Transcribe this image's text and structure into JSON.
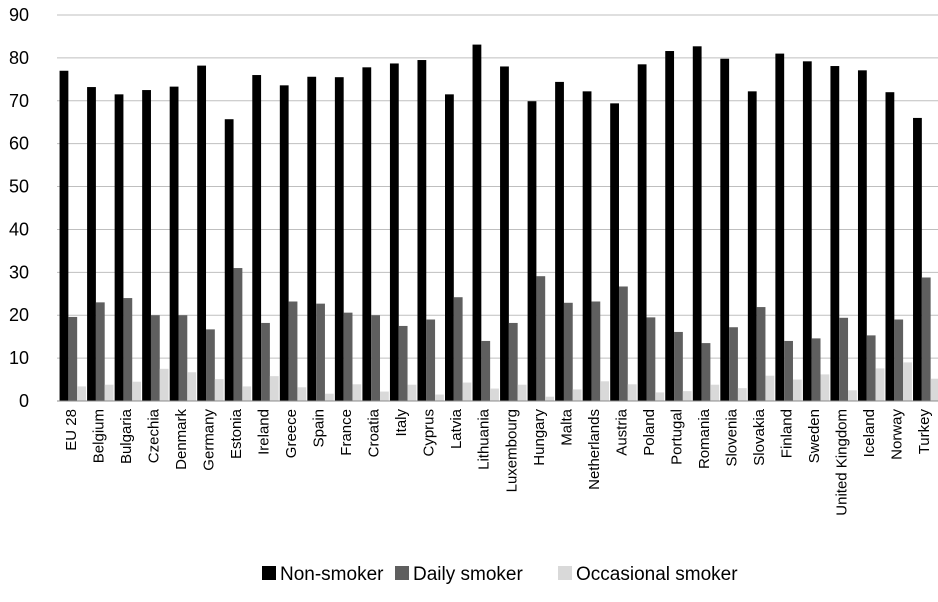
{
  "chart_data": {
    "type": "bar",
    "title": "",
    "xlabel": "",
    "ylabel": "",
    "ylim": [
      0,
      90
    ],
    "yticks": [
      "0",
      "10",
      "20",
      "30",
      "40",
      "50",
      "60",
      "70",
      "80",
      "90"
    ],
    "grid": "horizontal",
    "legend_position": "bottom",
    "categories": [
      "EU 28",
      "Belgium",
      "Bulgaria",
      "Czechia",
      "Denmark",
      "Germany",
      "Estonia",
      "Ireland",
      "Greece",
      "Spain",
      "France",
      "Croatia",
      "Italy",
      "Cyprus",
      "Latvia",
      "Lithuania",
      "Luxembourg",
      "Hungary",
      "Malta",
      "Netherlands",
      "Austria",
      "Poland",
      "Portugal",
      "Romania",
      "Slovenia",
      "Slovakia",
      "Finland",
      "Sweden",
      "United Kingdom",
      "Iceland",
      "Norway",
      "Turkey"
    ],
    "series": [
      {
        "name": "Non-smoker",
        "color": "#000000",
        "values": [
          77.0,
          73.2,
          71.5,
          72.5,
          73.3,
          78.2,
          65.7,
          76.0,
          73.6,
          75.6,
          75.5,
          77.8,
          78.7,
          79.5,
          71.5,
          83.1,
          78.0,
          69.9,
          74.4,
          72.2,
          69.4,
          78.5,
          81.6,
          82.7,
          79.8,
          72.2,
          81.0,
          79.2,
          78.1,
          77.1,
          72.0,
          66.0
        ]
      },
      {
        "name": "Daily smoker",
        "color": "#5f5f5f",
        "values": [
          19.6,
          23.0,
          24.0,
          20.0,
          20.0,
          16.7,
          31.0,
          18.2,
          23.2,
          22.7,
          20.6,
          20.0,
          17.5,
          19.0,
          24.2,
          14.0,
          18.2,
          29.1,
          22.9,
          23.2,
          26.7,
          19.5,
          16.1,
          13.5,
          17.2,
          21.9,
          14.0,
          14.6,
          19.4,
          15.3,
          19.0,
          28.8
        ]
      },
      {
        "name": "Occasional smoker",
        "color": "#d9d9d9",
        "values": [
          3.4,
          3.8,
          4.5,
          7.5,
          6.7,
          5.1,
          3.4,
          5.8,
          3.2,
          1.7,
          3.9,
          2.2,
          3.8,
          1.5,
          4.3,
          2.9,
          3.8,
          1.0,
          2.7,
          4.6,
          3.9,
          2.0,
          2.3,
          3.8,
          3.0,
          5.9,
          5.0,
          6.2,
          2.5,
          7.6,
          9.0,
          5.2
        ]
      }
    ]
  }
}
